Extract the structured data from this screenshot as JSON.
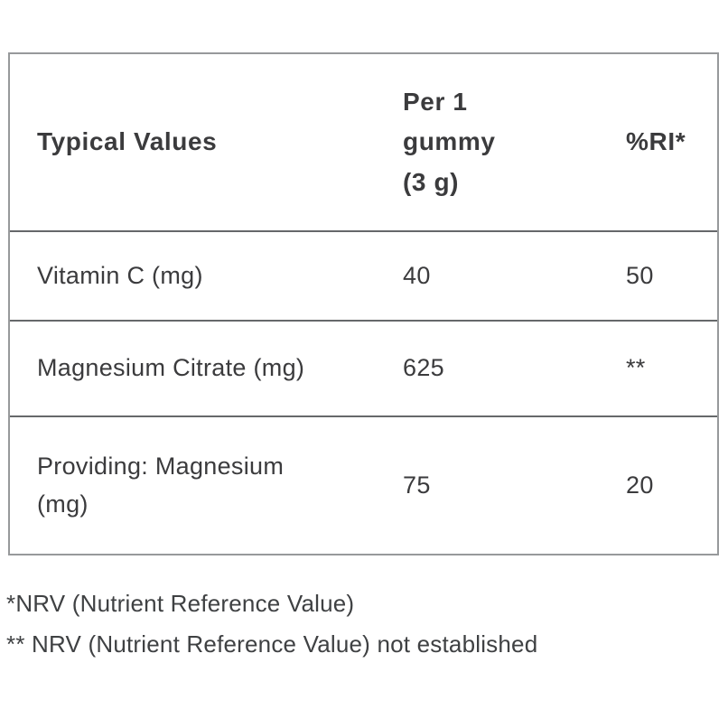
{
  "table": {
    "columns": [
      {
        "label": "Typical Values"
      },
      {
        "label": "Per 1 gummy (3 g)"
      },
      {
        "label": "%RI*"
      }
    ],
    "rows": [
      {
        "name": "Vitamin C (mg)",
        "per_serving": "40",
        "ri": "50"
      },
      {
        "name": "Magnesium Citrate (mg)",
        "per_serving": "625",
        "ri": "**"
      },
      {
        "name": "Providing: Magnesium (mg)",
        "per_serving": "75",
        "ri": "20"
      }
    ]
  },
  "footnotes": [
    "*NRV (Nutrient Reference Value)",
    "** NRV (Nutrient Reference Value) not established"
  ],
  "colors": {
    "background": "#ffffff",
    "text": "#3b3b3d",
    "outer_border": "#97999b",
    "inner_border": "#66686a"
  }
}
